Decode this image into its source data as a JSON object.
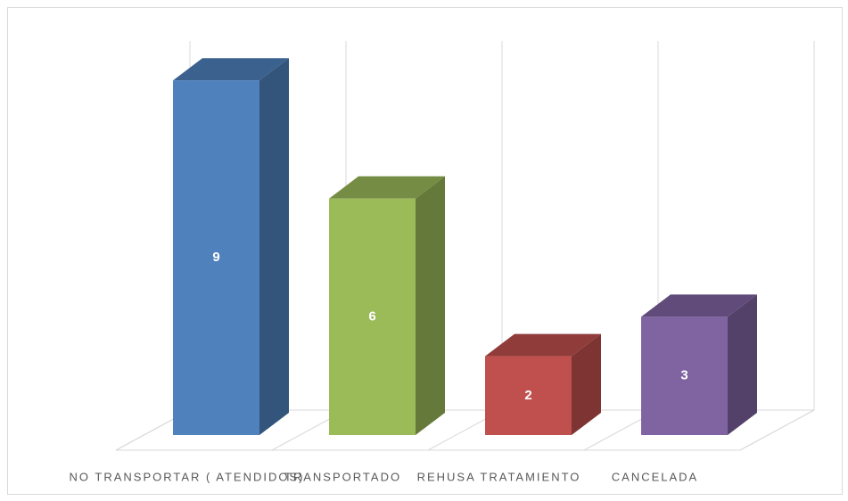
{
  "chart_data": {
    "type": "bar3d",
    "categories": [
      "NO TRANSPORTAR ( ATENDIDOS)",
      "TRANSPORTADO",
      "REHUSA TRATAMIENTO",
      "CANCELADA"
    ],
    "values": [
      9,
      6,
      2,
      3
    ],
    "colors": [
      "#4f81bd",
      "#9bbb59",
      "#c0504d",
      "#8064a2"
    ],
    "ylim": [
      0,
      10
    ]
  }
}
